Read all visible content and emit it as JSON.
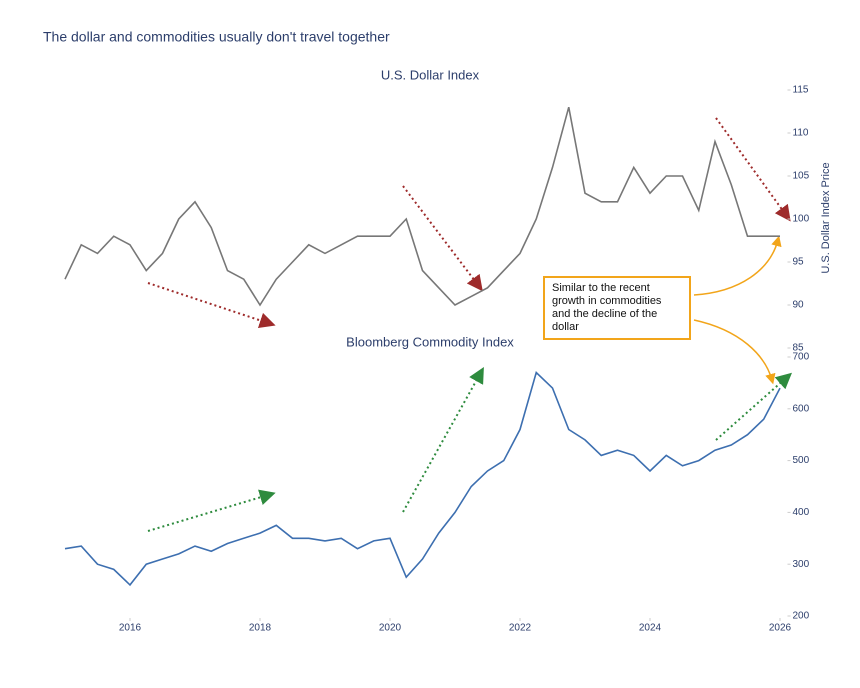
{
  "title": "The dollar and commodities usually don't travel together",
  "annotation": "Similar to the recent growth in commodities and the decline of the dollar",
  "chart_data": [
    {
      "type": "line",
      "title": "U.S. Dollar Index",
      "y_label": "U.S. Dollar Index Price",
      "x": [
        2015,
        2015.25,
        2015.5,
        2015.75,
        2016,
        2016.25,
        2016.5,
        2016.75,
        2017,
        2017.25,
        2017.5,
        2017.75,
        2018,
        2018.25,
        2018.5,
        2018.75,
        2019,
        2019.25,
        2019.5,
        2019.75,
        2020,
        2020.25,
        2020.5,
        2020.75,
        2021,
        2021.25,
        2021.5,
        2021.75,
        2022,
        2022.25,
        2022.5,
        2022.75,
        2023,
        2023.25,
        2023.5,
        2023.75,
        2024,
        2024.25,
        2024.5,
        2024.75,
        2025,
        2025.25,
        2025.5,
        2025.75,
        2026
      ],
      "series": [
        {
          "color": "#777777",
          "values": [
            93,
            97,
            96,
            98,
            97,
            94,
            96,
            100,
            102,
            99,
            94,
            93,
            90,
            93,
            95,
            97,
            96,
            97,
            98,
            98,
            98,
            100,
            94,
            92,
            90,
            91,
            92,
            94,
            96,
            100,
            106,
            113,
            103,
            102,
            102,
            106,
            103,
            105,
            105,
            101,
            109,
            104,
            98,
            98,
            98
          ]
        }
      ],
      "xlim": [
        2015,
        2026.1
      ],
      "ylim": [
        85,
        115
      ],
      "yticks": [
        85,
        90,
        95,
        100,
        105,
        110,
        115
      ]
    },
    {
      "type": "line",
      "title": "Bloomberg Commodity Index",
      "x": [
        2015,
        2015.25,
        2015.5,
        2015.75,
        2016,
        2016.25,
        2016.5,
        2016.75,
        2017,
        2017.25,
        2017.5,
        2017.75,
        2018,
        2018.25,
        2018.5,
        2018.75,
        2019,
        2019.25,
        2019.5,
        2019.75,
        2020,
        2020.25,
        2020.5,
        2020.75,
        2021,
        2021.25,
        2021.5,
        2021.75,
        2022,
        2022.25,
        2022.5,
        2022.75,
        2023,
        2023.25,
        2023.5,
        2023.75,
        2024,
        2024.25,
        2024.5,
        2024.75,
        2025,
        2025.25,
        2025.5,
        2025.75,
        2026
      ],
      "series": [
        {
          "color": "#3d6fb0",
          "values": [
            330,
            335,
            300,
            290,
            260,
            300,
            310,
            320,
            335,
            325,
            340,
            350,
            360,
            375,
            350,
            350,
            345,
            350,
            330,
            345,
            350,
            275,
            310,
            360,
            400,
            450,
            480,
            500,
            560,
            670,
            640,
            560,
            540,
            510,
            520,
            510,
            480,
            510,
            490,
            500,
            520,
            530,
            550,
            580,
            640
          ]
        }
      ],
      "xlim": [
        2015,
        2026.1
      ],
      "xticks": [
        2016,
        2018,
        2020,
        2022,
        2024,
        2026
      ],
      "ylim": [
        200,
        700
      ],
      "yticks": [
        200,
        300,
        400,
        500,
        600,
        700
      ]
    }
  ]
}
